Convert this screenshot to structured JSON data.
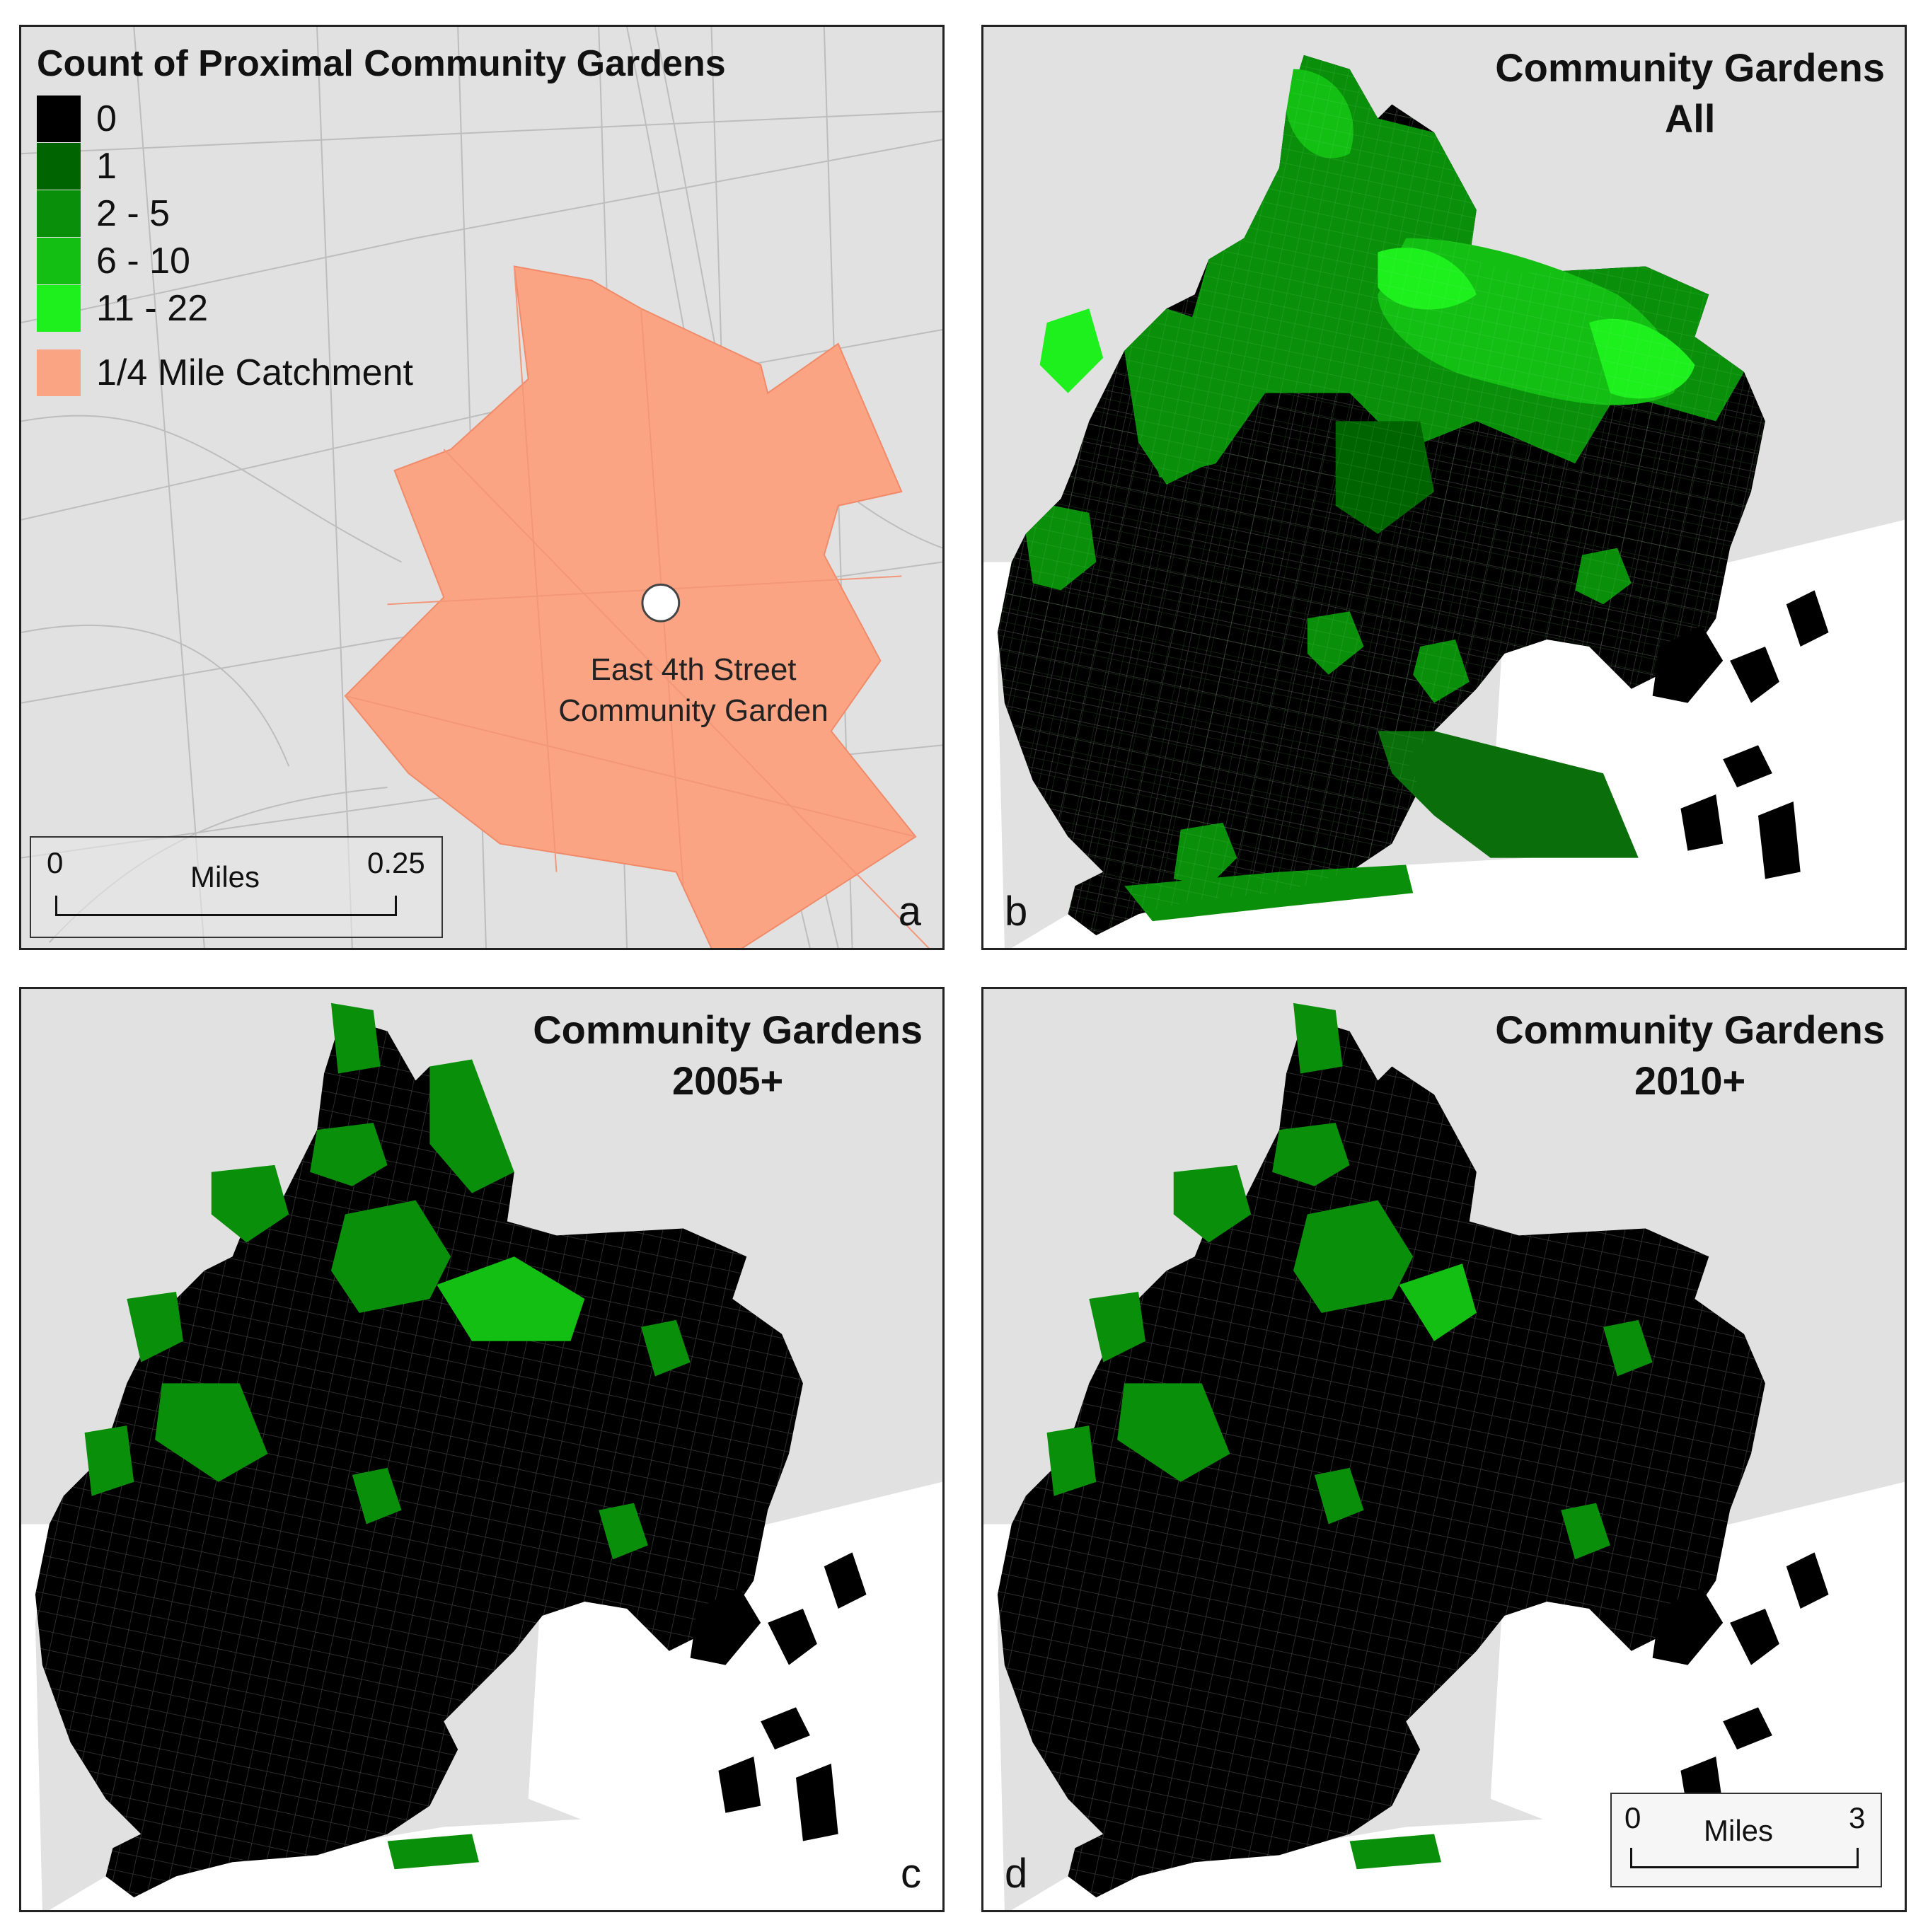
{
  "legend": {
    "title": "Count of Proximal Community Gardens",
    "classes": [
      {
        "label": "0",
        "color": "#000000"
      },
      {
        "label": "1",
        "color": "#006400"
      },
      {
        "label": "2 - 5",
        "color": "#0a8f0a"
      },
      {
        "label": "6 - 10",
        "color": "#14bf14"
      },
      {
        "label": "11 - 22",
        "color": "#1ef01e"
      }
    ],
    "catchment": {
      "label": "1/4 Mile Catchment",
      "color": "#fba484"
    }
  },
  "panel_a": {
    "letter": "a",
    "garden_label": {
      "line1": "East 4th Street",
      "line2": "Community Garden"
    },
    "scale": {
      "start": "0",
      "unit": "Miles",
      "end": "0.25"
    }
  },
  "panel_b": {
    "letter": "b",
    "title_line1": "Community Gardens",
    "title_line2": "All"
  },
  "panel_c": {
    "letter": "c",
    "title_line1": "Community Gardens",
    "title_line2": "2005+"
  },
  "panel_d": {
    "letter": "d",
    "title_line1": "Community Gardens",
    "title_line2": "2010+",
    "scale": {
      "start": "0",
      "unit": "Miles",
      "end": "3"
    }
  },
  "colors": {
    "background_land": "#e1e1e1",
    "water": "#ffffff",
    "streets": "#bdbdbd"
  }
}
